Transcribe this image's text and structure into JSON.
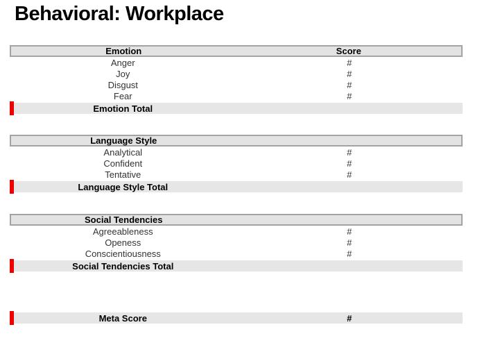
{
  "page": {
    "title": "Behavioral: Workplace"
  },
  "colors": {
    "header_bg": "#e3e3e3",
    "header_border": "#a3a3a3",
    "total_band_bg": "#e6e6e6",
    "accent_red": "#ee0000",
    "text": "#333333",
    "bold_text": "#000000",
    "background": "#ffffff"
  },
  "score_placeholder": "#",
  "sections": [
    {
      "header": {
        "col1": "Emotion",
        "col2": "Score"
      },
      "rows": [
        {
          "label": "Anger",
          "score": "#"
        },
        {
          "label": "Joy",
          "score": "#"
        },
        {
          "label": "Disgust",
          "score": "#"
        },
        {
          "label": "Fear",
          "score": "#"
        }
      ],
      "total": {
        "label": "Emotion Total",
        "score": ""
      }
    },
    {
      "header": {
        "col1": "Language Style",
        "col2": ""
      },
      "rows": [
        {
          "label": "Analytical",
          "score": "#"
        },
        {
          "label": "Confident",
          "score": "#"
        },
        {
          "label": "Tentative",
          "score": "#"
        }
      ],
      "total": {
        "label": "Language Style Total",
        "score": ""
      }
    },
    {
      "header": {
        "col1": "Social Tendencies",
        "col2": ""
      },
      "rows": [
        {
          "label": "Agreeableness",
          "score": "#"
        },
        {
          "label": "Openess",
          "score": "#"
        },
        {
          "label": "Conscientiousness",
          "score": "#"
        }
      ],
      "total": {
        "label": "Social Tendencies Total",
        "score": ""
      }
    }
  ],
  "meta": {
    "label": "Meta Score",
    "score": "#"
  }
}
